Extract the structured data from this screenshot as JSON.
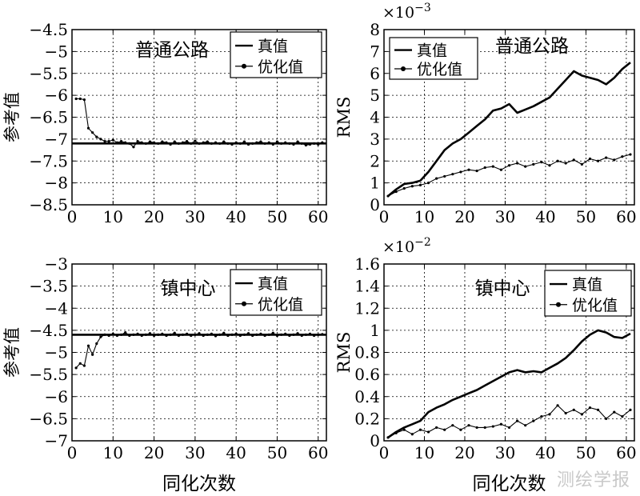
{
  "watermark": "测绘学报",
  "xlabel_common": "同化次数",
  "chart_data": [
    {
      "type": "line",
      "title": "普通公路",
      "xlabel": "",
      "ylabel": "参考值",
      "multiplier": "",
      "xlim": [
        0,
        62
      ],
      "ylim": [
        -8.5,
        -4.5
      ],
      "xticks": [
        0,
        10,
        20,
        30,
        40,
        50,
        60
      ],
      "yticks": [
        -8.5,
        -8,
        -7.5,
        -7,
        -6.5,
        -6,
        -5.5,
        -5,
        -4.5
      ],
      "xtick_labels": [
        "0",
        "10",
        "20",
        "30",
        "40",
        "50",
        "60"
      ],
      "ytick_labels": [
        "−8.5",
        "−8",
        "−7.5",
        "−7",
        "−6.5",
        "−6",
        "−5.5",
        "−5",
        "−4.5"
      ],
      "grid": true,
      "legend_position": "top-right",
      "series": [
        {
          "name": "真值",
          "style": "thick",
          "x": [
            0,
            62
          ],
          "y": [
            -7.1,
            -7.1
          ]
        },
        {
          "name": "优化值",
          "style": "thin-dot",
          "x": [
            1,
            2,
            3,
            4,
            5,
            6,
            7,
            8,
            9,
            10,
            11,
            12,
            13,
            14,
            15,
            16,
            17,
            18,
            19,
            20,
            21,
            22,
            23,
            24,
            25,
            26,
            27,
            28,
            29,
            30,
            31,
            32,
            33,
            34,
            35,
            36,
            37,
            38,
            39,
            40,
            41,
            42,
            43,
            44,
            45,
            46,
            47,
            48,
            49,
            50,
            51,
            52,
            53,
            54,
            55,
            56,
            57,
            58,
            59,
            60,
            61
          ],
          "y": [
            -6.08,
            -6.08,
            -6.1,
            -6.75,
            -6.85,
            -6.95,
            -7.0,
            -7.05,
            -7.05,
            -7.02,
            -7.08,
            -7.05,
            -7.08,
            -7.1,
            -7.18,
            -7.05,
            -7.08,
            -7.1,
            -7.06,
            -7.08,
            -7.1,
            -7.06,
            -7.08,
            -7.12,
            -7.06,
            -7.1,
            -7.08,
            -7.05,
            -7.1,
            -7.04,
            -7.1,
            -7.08,
            -7.06,
            -7.1,
            -7.08,
            -7.1,
            -7.06,
            -7.1,
            -7.12,
            -7.08,
            -7.1,
            -7.06,
            -7.12,
            -7.1,
            -7.08,
            -7.06,
            -7.1,
            -7.08,
            -7.12,
            -7.06,
            -7.1,
            -7.08,
            -7.1,
            -7.12,
            -7.06,
            -7.1,
            -7.14,
            -7.12,
            -7.1,
            -7.12,
            -7.08
          ]
        }
      ]
    },
    {
      "type": "line",
      "title": "普通公路",
      "xlabel": "",
      "ylabel": "RMS",
      "multiplier": "×10",
      "multiplier_exp": "−3",
      "xlim": [
        0,
        62
      ],
      "ylim": [
        0,
        8
      ],
      "xticks": [
        0,
        10,
        20,
        30,
        40,
        50,
        60
      ],
      "yticks": [
        0,
        1,
        2,
        3,
        4,
        5,
        6,
        7,
        8
      ],
      "xtick_labels": [
        "0",
        "10",
        "20",
        "30",
        "40",
        "50",
        "60"
      ],
      "ytick_labels": [
        "0",
        "1",
        "2",
        "3",
        "4",
        "5",
        "6",
        "7",
        "8"
      ],
      "grid": true,
      "legend_position": "top-left",
      "series": [
        {
          "name": "真值",
          "style": "thick",
          "x": [
            1,
            3,
            5,
            7,
            9,
            11,
            13,
            15,
            17,
            19,
            21,
            23,
            25,
            27,
            29,
            31,
            33,
            35,
            37,
            39,
            41,
            43,
            45,
            47,
            49,
            51,
            53,
            55,
            57,
            59,
            61
          ],
          "y": [
            0.4,
            0.7,
            0.95,
            1.0,
            1.1,
            1.5,
            2.0,
            2.5,
            2.8,
            3.0,
            3.3,
            3.6,
            3.9,
            4.3,
            4.4,
            4.6,
            4.2,
            4.35,
            4.5,
            4.7,
            4.9,
            5.3,
            5.7,
            6.1,
            5.9,
            5.8,
            5.7,
            5.5,
            5.8,
            6.2,
            6.5
          ]
        },
        {
          "name": "优化值",
          "style": "thin-dot",
          "x": [
            1,
            3,
            5,
            7,
            9,
            11,
            13,
            15,
            17,
            19,
            21,
            23,
            25,
            27,
            29,
            31,
            33,
            35,
            37,
            39,
            41,
            43,
            45,
            47,
            49,
            51,
            53,
            55,
            57,
            59,
            61
          ],
          "y": [
            0.4,
            0.6,
            0.75,
            0.85,
            0.9,
            1.0,
            1.2,
            1.3,
            1.4,
            1.5,
            1.6,
            1.55,
            1.7,
            1.75,
            1.6,
            1.8,
            1.9,
            1.75,
            1.85,
            1.95,
            1.8,
            2.0,
            1.9,
            2.05,
            1.85,
            2.1,
            2.0,
            2.15,
            2.05,
            2.2,
            2.3
          ]
        }
      ]
    },
    {
      "type": "line",
      "title": "镇中心",
      "xlabel": "同化次数",
      "ylabel": "参考值",
      "multiplier": "",
      "xlim": [
        0,
        62
      ],
      "ylim": [
        -7,
        -3
      ],
      "xticks": [
        0,
        10,
        20,
        30,
        40,
        50,
        60
      ],
      "yticks": [
        -7,
        -6.5,
        -6,
        -5.5,
        -5,
        -4.5,
        -4,
        -3.5,
        -3
      ],
      "xtick_labels": [
        "0",
        "10",
        "20",
        "30",
        "40",
        "50",
        "60"
      ],
      "ytick_labels": [
        "−7",
        "−6.5",
        "−6",
        "−5.5",
        "−5",
        "−4.5",
        "−4",
        "−3.5",
        "−3"
      ],
      "grid": true,
      "legend_position": "top-right",
      "series": [
        {
          "name": "真值",
          "style": "thick",
          "x": [
            0,
            62
          ],
          "y": [
            -4.6,
            -4.6
          ]
        },
        {
          "name": "优化值",
          "style": "thin-dot",
          "x": [
            1,
            2,
            3,
            4,
            5,
            6,
            7,
            8,
            9,
            10,
            11,
            12,
            13,
            14,
            15,
            16,
            17,
            18,
            19,
            20,
            21,
            22,
            23,
            24,
            25,
            26,
            27,
            28,
            29,
            30,
            31,
            32,
            33,
            34,
            35,
            36,
            37,
            38,
            39,
            40,
            41,
            42,
            43,
            44,
            45,
            46,
            47,
            48,
            49,
            50,
            51,
            52,
            53,
            54,
            55,
            56,
            57,
            58,
            59,
            60,
            61
          ],
          "y": [
            -5.35,
            -5.25,
            -5.3,
            -4.85,
            -5.05,
            -4.8,
            -4.65,
            -4.6,
            -4.62,
            -4.58,
            -4.62,
            -4.6,
            -4.55,
            -4.62,
            -4.6,
            -4.58,
            -4.62,
            -4.6,
            -4.57,
            -4.62,
            -4.6,
            -4.58,
            -4.62,
            -4.6,
            -4.56,
            -4.62,
            -4.6,
            -4.58,
            -4.62,
            -4.6,
            -4.57,
            -4.62,
            -4.6,
            -4.58,
            -4.63,
            -4.6,
            -4.56,
            -4.62,
            -4.6,
            -4.58,
            -4.62,
            -4.6,
            -4.57,
            -4.62,
            -4.6,
            -4.58,
            -4.62,
            -4.6,
            -4.56,
            -4.62,
            -4.6,
            -4.58,
            -4.62,
            -4.6,
            -4.57,
            -4.62,
            -4.6,
            -4.58,
            -4.62,
            -4.6,
            -4.59
          ]
        }
      ]
    },
    {
      "type": "line",
      "title": "镇中心",
      "xlabel": "同化次数",
      "ylabel": "RMS",
      "multiplier": "×10",
      "multiplier_exp": "−2",
      "xlim": [
        0,
        62
      ],
      "ylim": [
        0,
        1.6
      ],
      "xticks": [
        0,
        10,
        20,
        30,
        40,
        50,
        60
      ],
      "yticks": [
        0,
        0.2,
        0.4,
        0.6,
        0.8,
        1,
        1.2,
        1.4,
        1.6
      ],
      "xtick_labels": [
        "0",
        "10",
        "20",
        "30",
        "40",
        "50",
        "60"
      ],
      "ytick_labels": [
        "0",
        "0.2",
        "0.4",
        "0.6",
        "0.8",
        "1",
        "1.2",
        "1.4",
        "1.6"
      ],
      "grid": true,
      "legend_position": "top-right",
      "series": [
        {
          "name": "真值",
          "style": "thick",
          "x": [
            1,
            3,
            5,
            7,
            9,
            11,
            13,
            15,
            17,
            19,
            21,
            23,
            25,
            27,
            29,
            31,
            33,
            35,
            37,
            39,
            41,
            43,
            45,
            47,
            49,
            51,
            53,
            55,
            57,
            59,
            61
          ],
          "y": [
            0.03,
            0.08,
            0.12,
            0.15,
            0.18,
            0.26,
            0.3,
            0.33,
            0.37,
            0.4,
            0.43,
            0.46,
            0.5,
            0.54,
            0.58,
            0.62,
            0.64,
            0.62,
            0.63,
            0.62,
            0.66,
            0.7,
            0.75,
            0.82,
            0.9,
            0.96,
            1.0,
            0.98,
            0.94,
            0.93,
            0.97
          ]
        },
        {
          "name": "优化值",
          "style": "thin-dot",
          "x": [
            1,
            3,
            5,
            7,
            9,
            11,
            13,
            15,
            17,
            19,
            21,
            23,
            25,
            27,
            29,
            31,
            33,
            35,
            37,
            39,
            41,
            43,
            45,
            47,
            49,
            51,
            53,
            55,
            57,
            59,
            61
          ],
          "y": [
            0.03,
            0.07,
            0.1,
            0.06,
            0.1,
            0.08,
            0.12,
            0.1,
            0.14,
            0.1,
            0.14,
            0.12,
            0.12,
            0.13,
            0.15,
            0.12,
            0.18,
            0.14,
            0.18,
            0.22,
            0.24,
            0.32,
            0.25,
            0.28,
            0.24,
            0.3,
            0.28,
            0.2,
            0.26,
            0.22,
            0.28
          ]
        }
      ]
    }
  ]
}
